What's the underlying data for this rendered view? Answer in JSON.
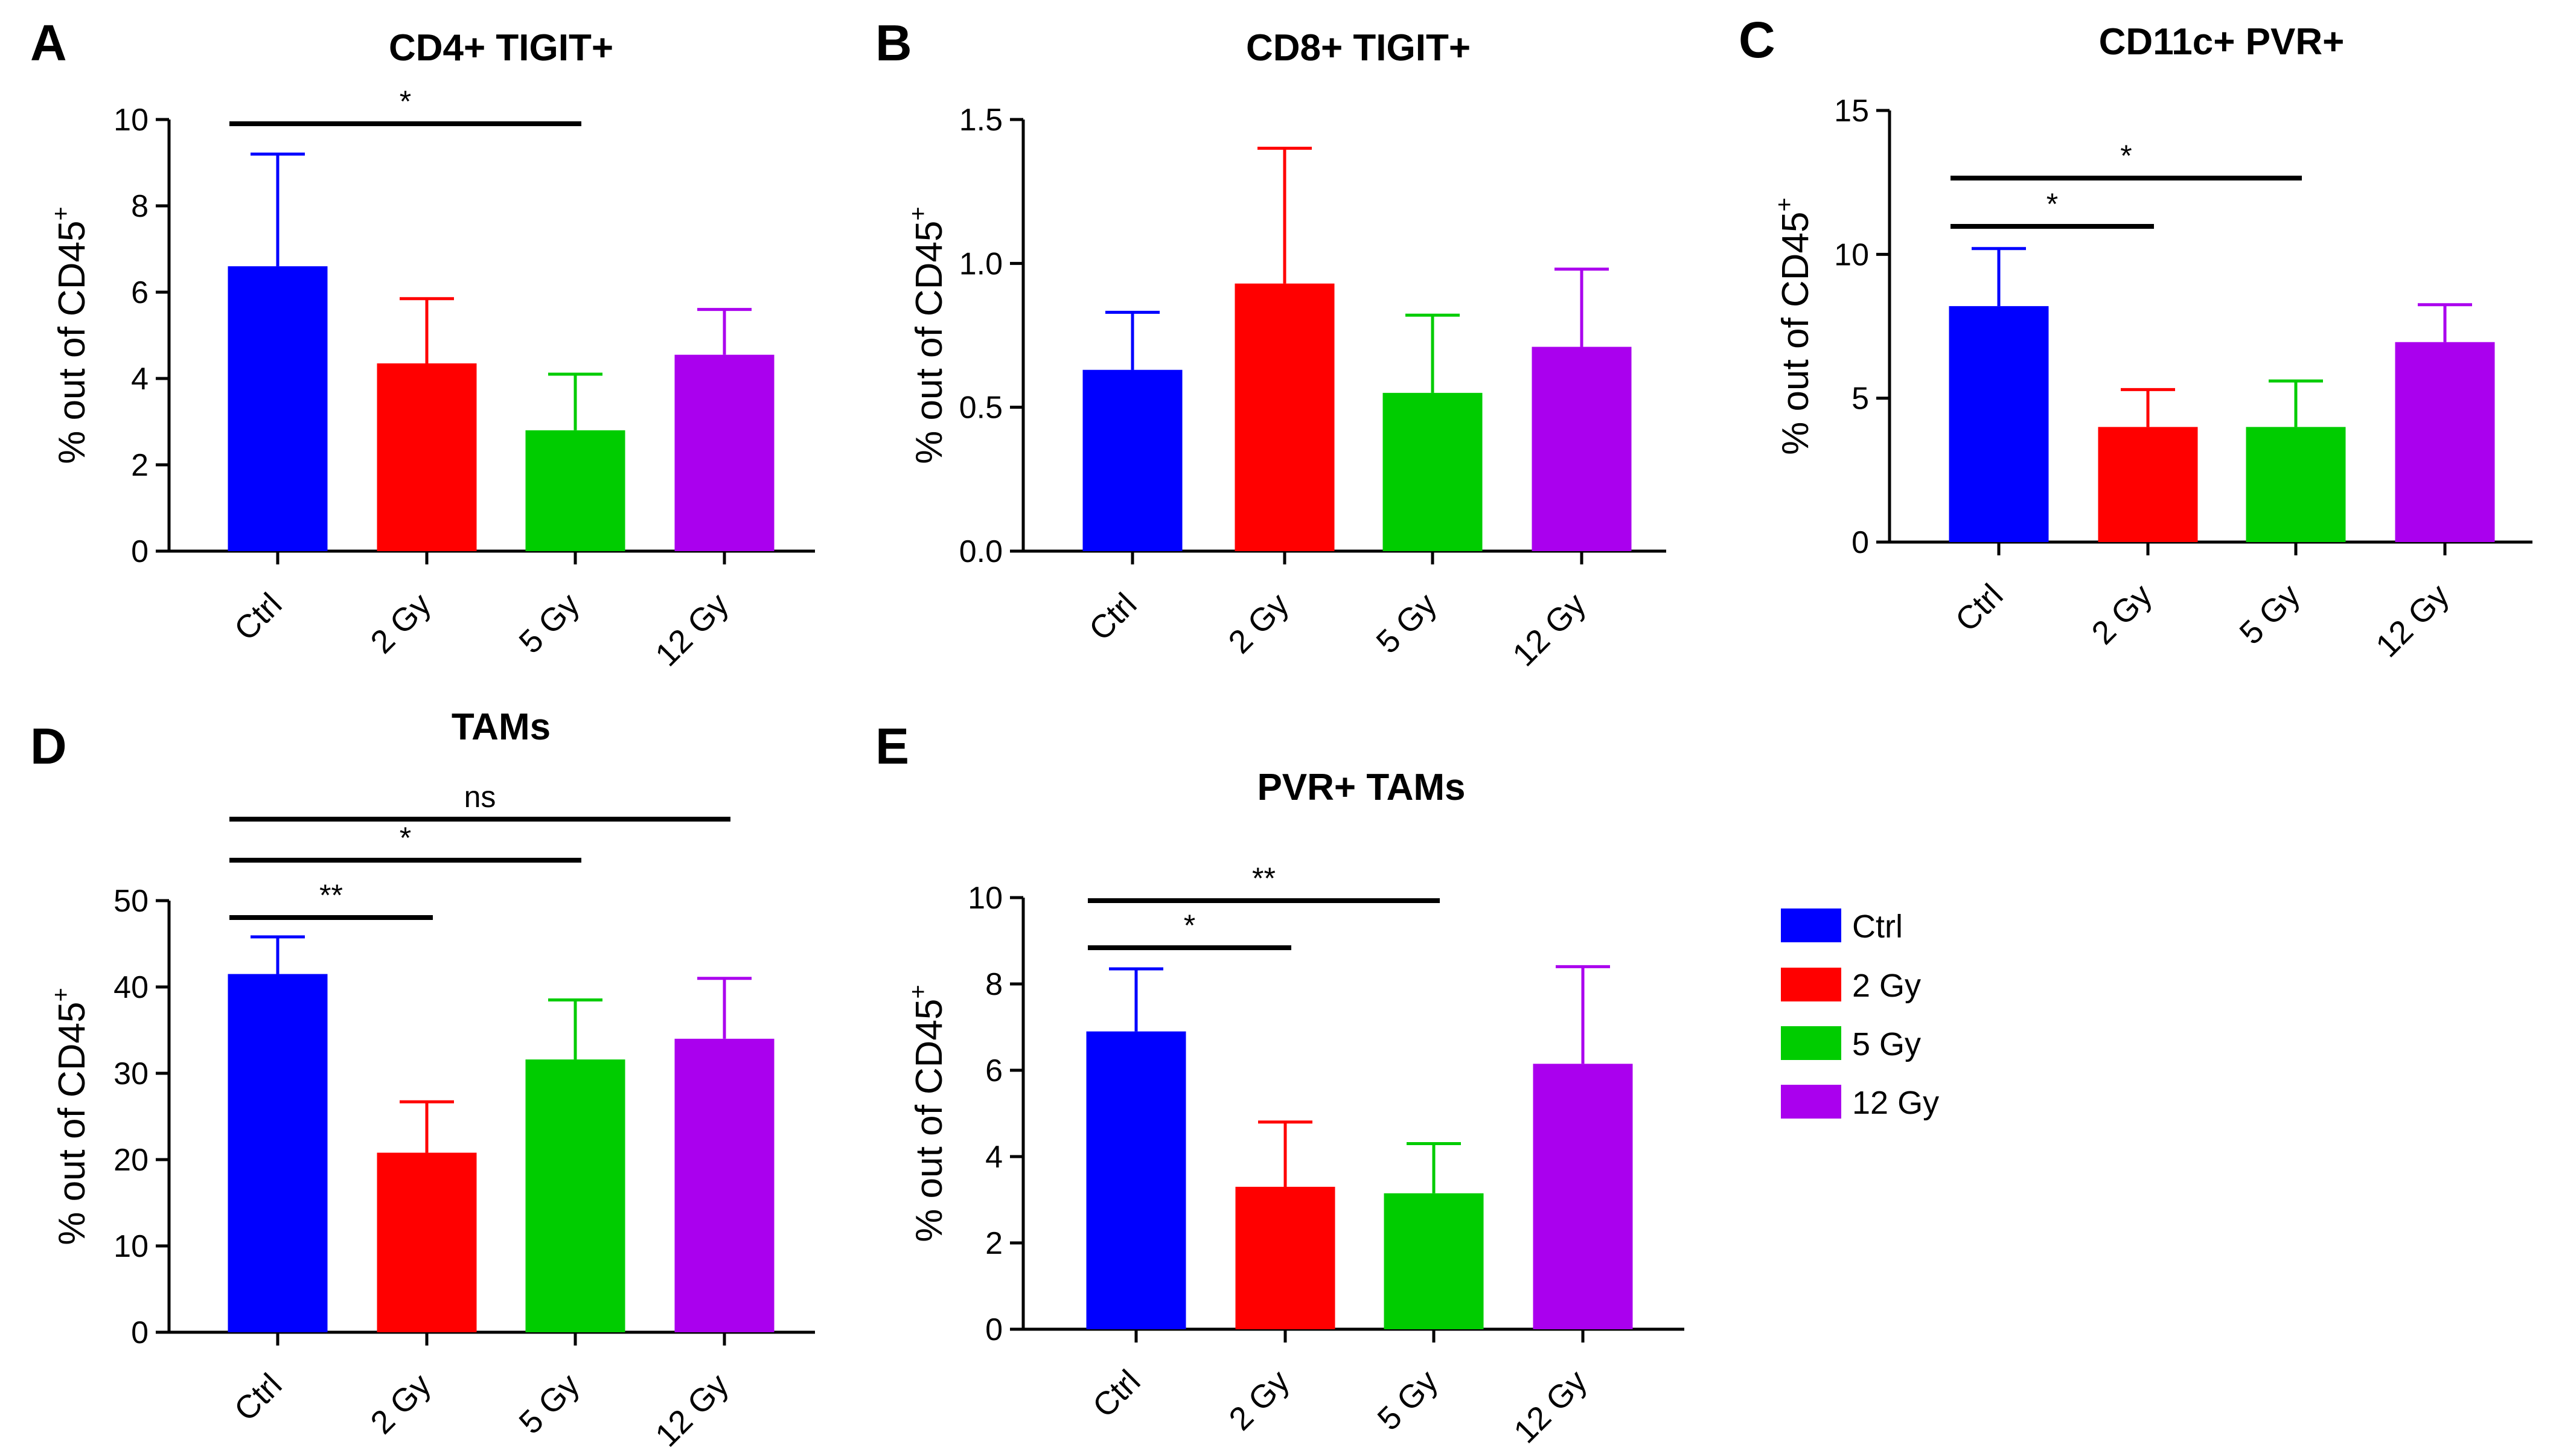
{
  "colors": {
    "Ctrl": "#0000ff",
    "2 Gy": "#ff0000",
    "5 Gy": "#00cc00",
    "12 Gy": "#aa00ee"
  },
  "legend": {
    "items": [
      "Ctrl",
      "2 Gy",
      "5 Gy",
      "12 Gy"
    ]
  },
  "chart_data": [
    {
      "panel": "A",
      "title": "CD4+ TIGIT+",
      "type": "bar",
      "ylabel": "% out of CD45",
      "ylabel_sup": "+",
      "categories": [
        "Ctrl",
        "2 Gy",
        "5 Gy",
        "12 Gy"
      ],
      "values": [
        6.6,
        4.35,
        2.8,
        4.55
      ],
      "errors": [
        2.6,
        1.5,
        1.3,
        1.05
      ],
      "ylim": [
        0,
        10
      ],
      "yticks": [
        "0",
        "2",
        "4",
        "6",
        "8",
        "10"
      ],
      "ytick_values": [
        0,
        2,
        4,
        6,
        8,
        10
      ],
      "significance": [
        {
          "from": "Ctrl",
          "to": "5 Gy",
          "label": "*"
        }
      ]
    },
    {
      "panel": "B",
      "title": "CD8+ TIGIT+",
      "type": "bar",
      "ylabel": "% out of CD45",
      "ylabel_sup": "+",
      "categories": [
        "Ctrl",
        "2 Gy",
        "5 Gy",
        "12 Gy"
      ],
      "values": [
        0.63,
        0.93,
        0.55,
        0.71
      ],
      "errors": [
        0.2,
        0.47,
        0.27,
        0.27
      ],
      "ylim": [
        0,
        1.5
      ],
      "yticks": [
        "0.0",
        "0.5",
        "1.0",
        "1.5"
      ],
      "ytick_values": [
        0,
        0.5,
        1,
        1.5
      ],
      "significance": []
    },
    {
      "panel": "C",
      "title": "CD11c+ PVR+",
      "type": "bar",
      "ylabel": "% out of CD45",
      "ylabel_sup": "+",
      "categories": [
        "Ctrl",
        "2 Gy",
        "5 Gy",
        "12 Gy"
      ],
      "values": [
        8.2,
        4.0,
        4.0,
        6.95
      ],
      "errors": [
        2.0,
        1.3,
        1.6,
        1.3
      ],
      "ylim": [
        0,
        15
      ],
      "yticks": [
        "0",
        "5",
        "10",
        "15"
      ],
      "ytick_values": [
        0,
        5,
        10,
        15
      ],
      "significance": [
        {
          "from": "Ctrl",
          "to": "2 Gy",
          "label": "*"
        },
        {
          "from": "Ctrl",
          "to": "5 Gy",
          "label": "*"
        }
      ]
    },
    {
      "panel": "D",
      "title": "TAMs",
      "type": "bar",
      "ylabel": "% out of CD45",
      "ylabel_sup": "+",
      "categories": [
        "Ctrl",
        "2 Gy",
        "5 Gy",
        "12 Gy"
      ],
      "values": [
        41.5,
        20.8,
        31.6,
        34.0
      ],
      "errors": [
        4.3,
        5.9,
        6.9,
        7.0
      ],
      "ylim": [
        0,
        50
      ],
      "yticks": [
        "0",
        "10",
        "20",
        "30",
        "40",
        "50"
      ],
      "ytick_values": [
        0,
        10,
        20,
        30,
        40,
        50
      ],
      "significance": [
        {
          "from": "Ctrl",
          "to": "2 Gy",
          "label": "**"
        },
        {
          "from": "Ctrl",
          "to": "5 Gy",
          "label": "*"
        },
        {
          "from": "Ctrl",
          "to": "12 Gy",
          "label": "ns"
        }
      ]
    },
    {
      "panel": "E",
      "title": "PVR+ TAMs",
      "type": "bar",
      "ylabel": "% out of CD45",
      "ylabel_sup": "+",
      "categories": [
        "Ctrl",
        "2 Gy",
        "5 Gy",
        "12 Gy"
      ],
      "values": [
        6.9,
        3.3,
        3.15,
        6.15
      ],
      "errors": [
        1.45,
        1.5,
        1.15,
        2.25
      ],
      "ylim": [
        0,
        10
      ],
      "yticks": [
        "0",
        "2",
        "4",
        "6",
        "8",
        "10"
      ],
      "ytick_values": [
        0,
        2,
        4,
        6,
        8,
        10
      ],
      "significance": [
        {
          "from": "Ctrl",
          "to": "2 Gy",
          "label": "*"
        },
        {
          "from": "Ctrl",
          "to": "5 Gy",
          "label": "**"
        }
      ]
    }
  ]
}
